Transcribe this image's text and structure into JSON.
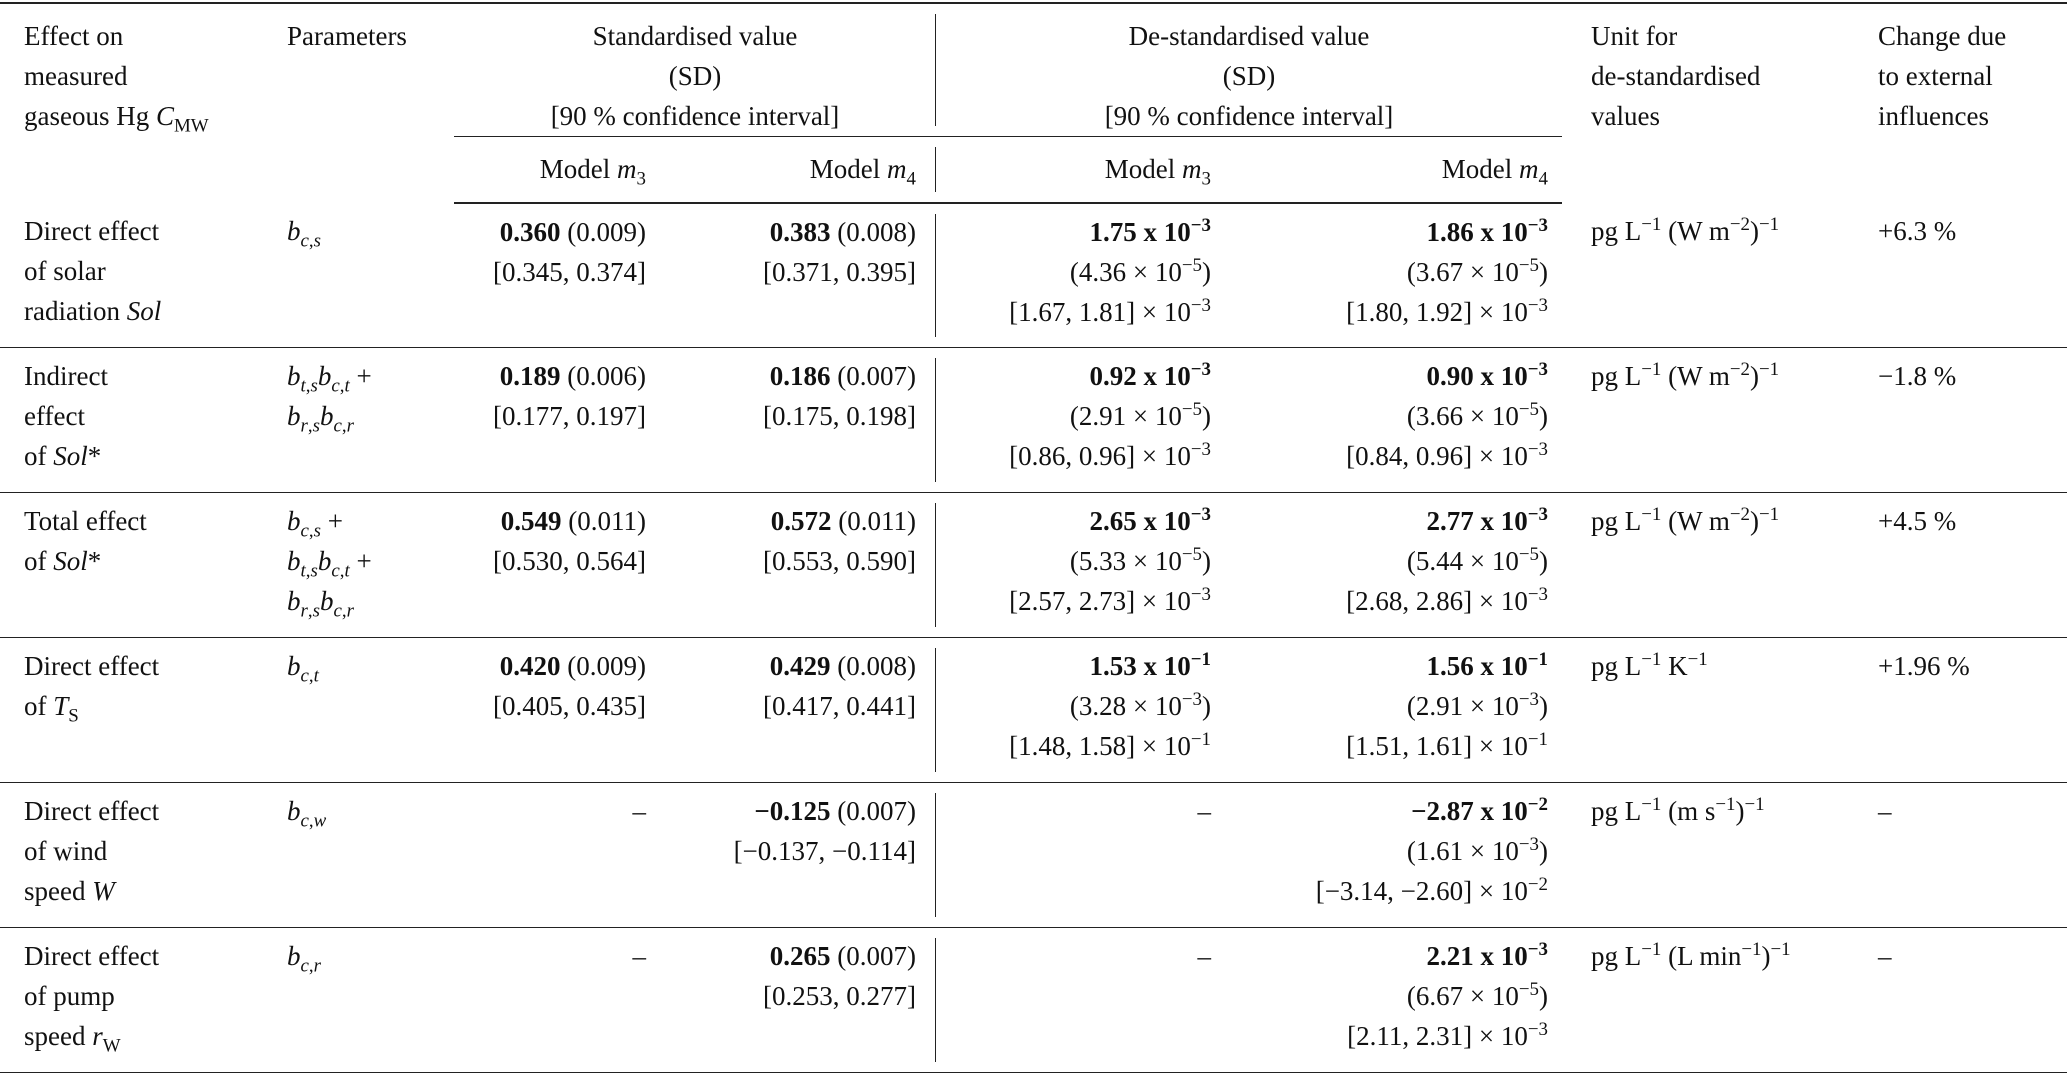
{
  "header": {
    "effect": [
      "Effect on",
      "measured",
      "gaseous Hg `C`_{MW}"
    ],
    "parameters": "Parameters",
    "standardised": [
      "Standardised value",
      "(SD)",
      "[90 % confidence interval]"
    ],
    "destandardised": [
      "De-standardised value",
      "(SD)",
      "[90 % confidence interval]"
    ],
    "unit": [
      "Unit for",
      "de-standardised",
      "values"
    ],
    "change": [
      "Change due",
      "to external",
      "influences"
    ],
    "model_m3": "Model `m`_{3}",
    "model_m4": "Model `m`_{4}"
  },
  "rows": [
    {
      "effect": [
        "Direct effect",
        "of solar",
        "radiation `Sol`"
      ],
      "params": [
        "`b`_{`c`,`s`}"
      ],
      "std_m3": {
        "value": "0.360",
        "sd": "(0.009)",
        "ci": "[0.345, 0.374]"
      },
      "std_m4": {
        "value": "0.383",
        "sd": "(0.008)",
        "ci": "[0.371, 0.395]"
      },
      "de_m3": {
        "value": "1.75 x 10^{−3}",
        "sd": "(4.36 × 10^{−5})",
        "ci": "[1.67, 1.81] × 10^{−3}"
      },
      "de_m4": {
        "value": "1.86 x 10^{−3}",
        "sd": "(3.67 × 10^{−5})",
        "ci": "[1.80, 1.92] × 10^{−3}"
      },
      "unit": "pg L^{−1} (W m^{−2})^{−1}",
      "change": "+6.3 %"
    },
    {
      "effect": [
        "Indirect",
        "effect",
        "of `Sol`*"
      ],
      "params": [
        "`b`_{`t`,`s`}`b`_{`c`,`t`} +",
        "`b`_{`r`,`s`}`b`_{`c`,`r`}"
      ],
      "std_m3": {
        "value": "0.189",
        "sd": "(0.006)",
        "ci": "[0.177, 0.197]"
      },
      "std_m4": {
        "value": "0.186",
        "sd": "(0.007)",
        "ci": "[0.175, 0.198]"
      },
      "de_m3": {
        "value": "0.92 x 10^{−3}",
        "sd": "(2.91 × 10^{−5})",
        "ci": "[0.86, 0.96] × 10^{−3}"
      },
      "de_m4": {
        "value": "0.90 x 10^{−3}",
        "sd": "(3.66 × 10^{−5})",
        "ci": "[0.84, 0.96] × 10^{−3}"
      },
      "unit": "pg L^{−1} (W m^{−2})^{−1}",
      "change": "−1.8 %"
    },
    {
      "effect": [
        "Total effect",
        "of `Sol`*"
      ],
      "params": [
        "`b`_{`c`,`s`} +",
        "`b`_{`t`,`s`}`b`_{`c`,`t`} +",
        "`b`_{`r`,`s`}`b`_{`c`,`r`}"
      ],
      "std_m3": {
        "value": "0.549",
        "sd": "(0.011)",
        "ci": "[0.530, 0.564]"
      },
      "std_m4": {
        "value": "0.572",
        "sd": "(0.011)",
        "ci": "[0.553, 0.590]"
      },
      "de_m3": {
        "value": "2.65 x 10^{−3}",
        "sd": "(5.33 × 10^{−5})",
        "ci": "[2.57, 2.73] × 10^{−3}"
      },
      "de_m4": {
        "value": "2.77 x 10^{−3}",
        "sd": "(5.44 × 10^{−5})",
        "ci": "[2.68, 2.86] × 10^{−3}"
      },
      "unit": "pg L^{−1} (W m^{−2})^{−1}",
      "change": "+4.5 %"
    },
    {
      "effect": [
        "Direct effect",
        "of `T`_{S}"
      ],
      "params": [
        "`b`_{`c`,`t`}"
      ],
      "std_m3": {
        "value": "0.420",
        "sd": "(0.009)",
        "ci": "[0.405, 0.435]"
      },
      "std_m4": {
        "value": "0.429",
        "sd": "(0.008)",
        "ci": "[0.417, 0.441]"
      },
      "de_m3": {
        "value": "1.53 x 10^{−1}",
        "sd": "(3.28 × 10^{−3})",
        "ci": "[1.48, 1.58] × 10^{−1}"
      },
      "de_m4": {
        "value": "1.56 x 10^{−1}",
        "sd": "(2.91 × 10^{−3})",
        "ci": "[1.51, 1.61] × 10^{−1}"
      },
      "unit": "pg L^{−1} K^{−1}",
      "change": "+1.96 %"
    },
    {
      "effect": [
        "Direct effect",
        "of wind",
        "speed `W`"
      ],
      "params": [
        "`b`_{`c`,`w`}"
      ],
      "std_m3": {
        "dash": "–"
      },
      "std_m4": {
        "value": "−0.125",
        "sd": "(0.007)",
        "ci": "[−0.137, −0.114]"
      },
      "de_m3": {
        "dash": "–"
      },
      "de_m4": {
        "value": "−2.87 x 10^{−2}",
        "sd": "(1.61 × 10^{−3})",
        "ci": "[−3.14, −2.60] × 10^{−2}"
      },
      "unit": "pg L^{−1} (m s^{−1})^{−1}",
      "change": "–"
    },
    {
      "effect": [
        "Direct effect",
        "of pump",
        "speed `r`_{W}"
      ],
      "params": [
        "`b`_{`c`,`r`}"
      ],
      "std_m3": {
        "dash": "–"
      },
      "std_m4": {
        "value": "0.265",
        "sd": "(0.007)",
        "ci": "[0.253, 0.277]"
      },
      "de_m3": {
        "dash": "–"
      },
      "de_m4": {
        "value": "2.21 x 10^{−3}",
        "sd": "(6.67 × 10^{−5})",
        "ci": "[2.11, 2.31] × 10^{−3}"
      },
      "unit": "pg L^{−1} (L min^{−1})^{−1}",
      "change": "–"
    }
  ]
}
